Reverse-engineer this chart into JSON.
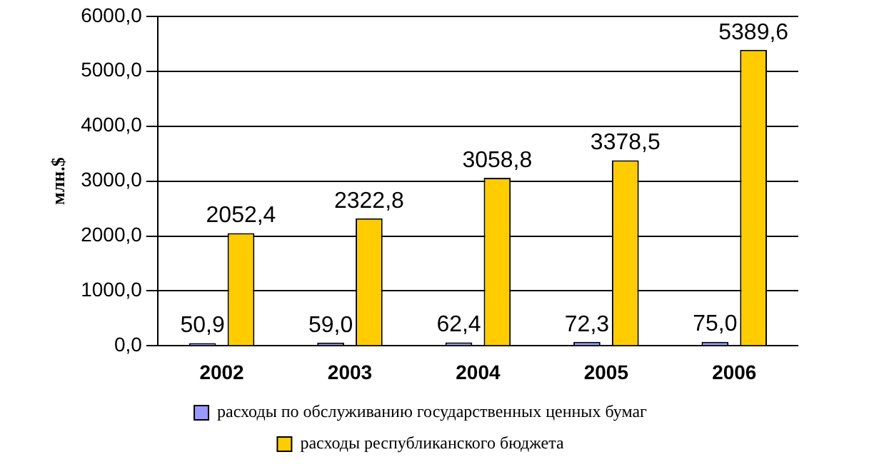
{
  "chart_data": {
    "type": "bar",
    "ylabel": "млн.$",
    "categories": [
      "2002",
      "2003",
      "2004",
      "2005",
      "2006"
    ],
    "series": [
      {
        "name": "расходы по обслуживанию государственных ценных бумаг",
        "color": "#9999ff",
        "values": [
          50.9,
          59.0,
          62.4,
          72.3,
          75.0
        ],
        "value_labels": [
          "50,9",
          "59,0",
          "62,4",
          "72,3",
          "75,0"
        ]
      },
      {
        "name": "расходы республиканского бюджета",
        "color": "#ffcc00",
        "values": [
          2052.4,
          2322.8,
          3058.8,
          3378.5,
          5389.6
        ],
        "value_labels": [
          "2052,4",
          "2322,8",
          "3058,8",
          "3378,5",
          "5389,6"
        ]
      }
    ],
    "ylim": [
      0,
      6000
    ],
    "yticks": [
      {
        "value": 0,
        "label": "0,0"
      },
      {
        "value": 1000,
        "label": "1000,0"
      },
      {
        "value": 2000,
        "label": "2000,0"
      },
      {
        "value": 3000,
        "label": "3000,0"
      },
      {
        "value": 4000,
        "label": "4000,0"
      },
      {
        "value": 5000,
        "label": "5000,0"
      },
      {
        "value": 6000,
        "label": "6000,0"
      }
    ],
    "grid": "y",
    "legend": "bottom"
  }
}
